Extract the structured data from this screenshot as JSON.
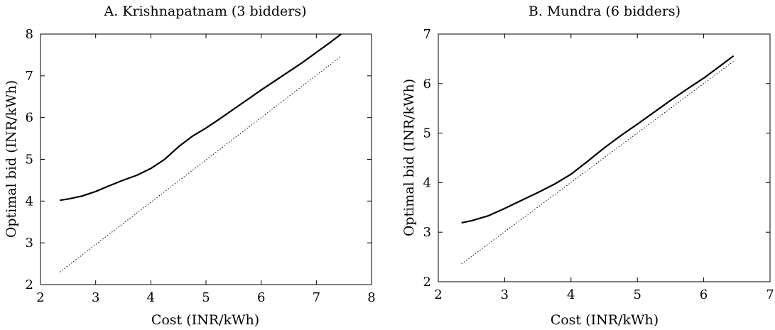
{
  "chart_data": [
    {
      "type": "line",
      "title": "A. Krishnapatnam (3 bidders)",
      "xlabel": "Cost (INR/kWh)",
      "ylabel": "Optimal bid (INR/kWh)",
      "xlim": [
        2,
        8
      ],
      "ylim": [
        2,
        8
      ],
      "xticks": [
        "2",
        "3",
        "4",
        "5",
        "6",
        "7",
        "8"
      ],
      "yticks": [
        "2",
        "3",
        "4",
        "5",
        "6",
        "7",
        "8"
      ],
      "grid": false,
      "series": [
        {
          "style": "solid",
          "x": [
            2.35,
            2.5,
            2.75,
            3.0,
            3.25,
            3.5,
            3.75,
            4.0,
            4.25,
            4.5,
            4.75,
            5.0,
            5.25,
            5.5,
            5.75,
            6.0,
            6.25,
            6.5,
            6.75,
            7.0,
            7.25,
            7.45
          ],
          "y": [
            4.02,
            4.05,
            4.12,
            4.23,
            4.37,
            4.5,
            4.62,
            4.78,
            5.0,
            5.3,
            5.55,
            5.75,
            5.97,
            6.2,
            6.43,
            6.66,
            6.88,
            7.1,
            7.32,
            7.56,
            7.8,
            8.0
          ]
        },
        {
          "style": "dotted",
          "x": [
            2.35,
            7.45
          ],
          "y": [
            2.3,
            7.47
          ]
        }
      ]
    },
    {
      "type": "line",
      "title": "B. Mundra (6 bidders)",
      "xlabel": "Cost (INR/kWh)",
      "ylabel": "Optimal bid (INR/kWh)",
      "xlim": [
        2,
        7
      ],
      "ylim": [
        2,
        7
      ],
      "xticks": [
        "2",
        "3",
        "4",
        "5",
        "6",
        "7"
      ],
      "yticks": [
        "2",
        "3",
        "4",
        "5",
        "6",
        "7"
      ],
      "grid": false,
      "series": [
        {
          "style": "solid",
          "x": [
            2.35,
            2.5,
            2.75,
            3.0,
            3.25,
            3.5,
            3.75,
            4.0,
            4.25,
            4.5,
            4.75,
            5.0,
            5.25,
            5.5,
            5.75,
            6.0,
            6.25,
            6.45
          ],
          "y": [
            3.19,
            3.23,
            3.33,
            3.48,
            3.64,
            3.8,
            3.97,
            4.17,
            4.43,
            4.7,
            4.95,
            5.18,
            5.42,
            5.66,
            5.89,
            6.11,
            6.36,
            6.56
          ]
        },
        {
          "style": "dotted",
          "x": [
            2.35,
            6.45
          ],
          "y": [
            2.36,
            6.45
          ]
        }
      ]
    }
  ]
}
